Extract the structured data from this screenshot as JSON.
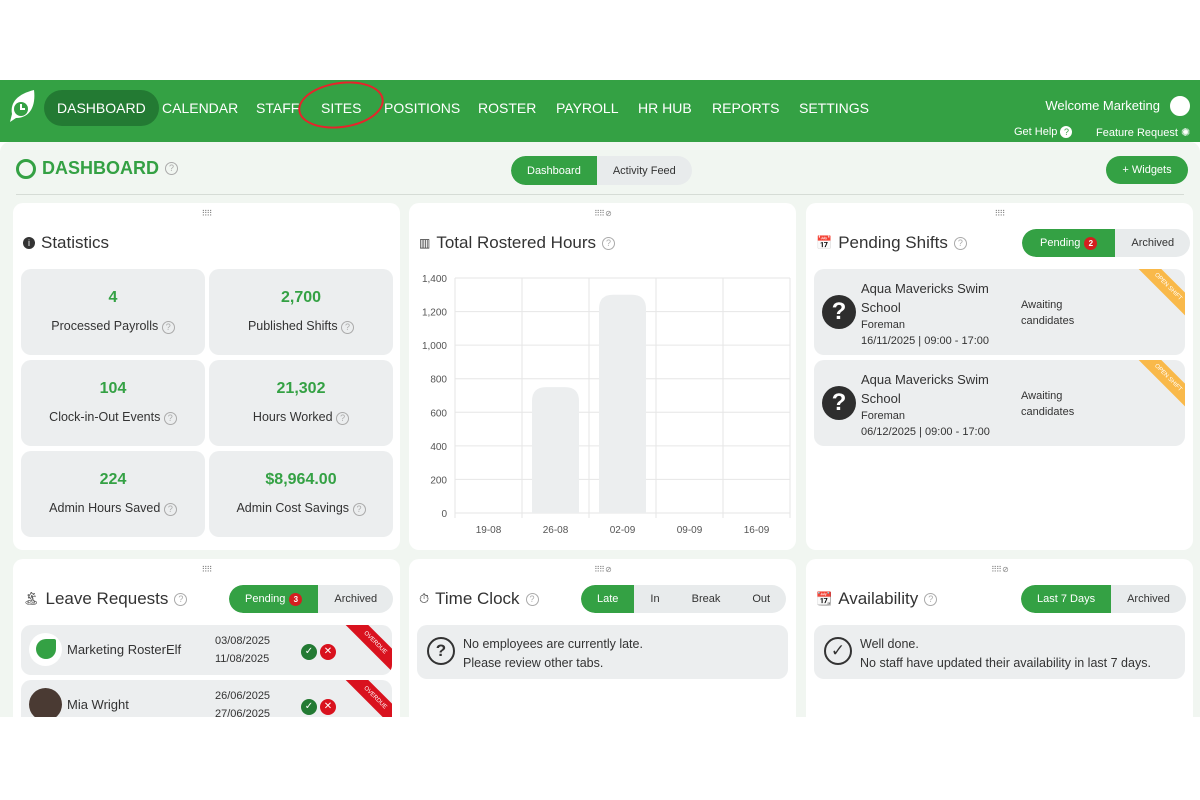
{
  "nav": {
    "items": [
      "DASHBOARD",
      "CALENDAR",
      "STAFF",
      "SITES",
      "POSITIONS",
      "ROSTER",
      "PAYROLL",
      "HR HUB",
      "REPORTS",
      "SETTINGS"
    ],
    "welcome": "Welcome Marketing",
    "get_help": "Get Help",
    "feature_request": "Feature Request"
  },
  "page": {
    "title": "DASHBOARD",
    "tabs": [
      "Dashboard",
      "Activity Feed"
    ],
    "widgets_button": "+ Widgets"
  },
  "statistics": {
    "title": "Statistics",
    "items": [
      {
        "value": "4",
        "label": "Processed Payrolls"
      },
      {
        "value": "2,700",
        "label": "Published Shifts"
      },
      {
        "value": "104",
        "label": "Clock-in-Out Events"
      },
      {
        "value": "21,302",
        "label": "Hours Worked"
      },
      {
        "value": "224",
        "label": "Admin Hours Saved"
      },
      {
        "value": "$8,964.00",
        "label": "Admin Cost Savings"
      }
    ]
  },
  "rostered": {
    "title": "Total Rostered Hours"
  },
  "chart_data": {
    "type": "bar",
    "categories": [
      "19-08",
      "26-08",
      "02-09",
      "09-09",
      "16-09"
    ],
    "values": [
      0,
      750,
      1300,
      0,
      0
    ],
    "ylim": [
      0,
      1400
    ],
    "yticks": [
      "0",
      "200",
      "400",
      "600",
      "800",
      "1,000",
      "1,200",
      "1,400"
    ],
    "grid": true,
    "bar_color": "#eceeef"
  },
  "pending_shifts": {
    "title": "Pending Shifts",
    "tabs": [
      "Pending",
      "Archived"
    ],
    "badge": "2",
    "ribbon": "OPEN SHIFT",
    "items": [
      {
        "site": "Aqua Mavericks Swim",
        "site2": "School",
        "position": "Foreman",
        "when": "16/11/2025 | 09:00 - 17:00",
        "status": "Awaiting",
        "status2": "candidates"
      },
      {
        "site": "Aqua Mavericks Swim",
        "site2": "School",
        "position": "Foreman",
        "when": "06/12/2025 | 09:00 - 17:00",
        "status": "Awaiting",
        "status2": "candidates"
      }
    ]
  },
  "leave": {
    "title": "Leave Requests",
    "tabs": [
      "Pending",
      "Archived"
    ],
    "badge": "3",
    "ribbon": "OVERDUE",
    "items": [
      {
        "name": "Marketing RosterElf",
        "from": "03/08/2025",
        "to": "11/08/2025"
      },
      {
        "name": "Mia Wright",
        "from": "26/06/2025",
        "to": "27/06/2025"
      }
    ]
  },
  "timeclock": {
    "title": "Time Clock",
    "tabs": [
      "Late",
      "In",
      "Break",
      "Out"
    ],
    "msg1": "No employees are currently late.",
    "msg2": "Please review other tabs."
  },
  "availability": {
    "title": "Availability",
    "tabs": [
      "Last 7 Days",
      "Archived"
    ],
    "msg1": "Well done.",
    "msg2": "No staff have updated their availability in last 7 days."
  },
  "colors": {
    "brand": "#34a144",
    "brand_dark": "#237a33",
    "ribbon_open": "#f9b94a",
    "ribbon_overdue": "#d9121e"
  }
}
